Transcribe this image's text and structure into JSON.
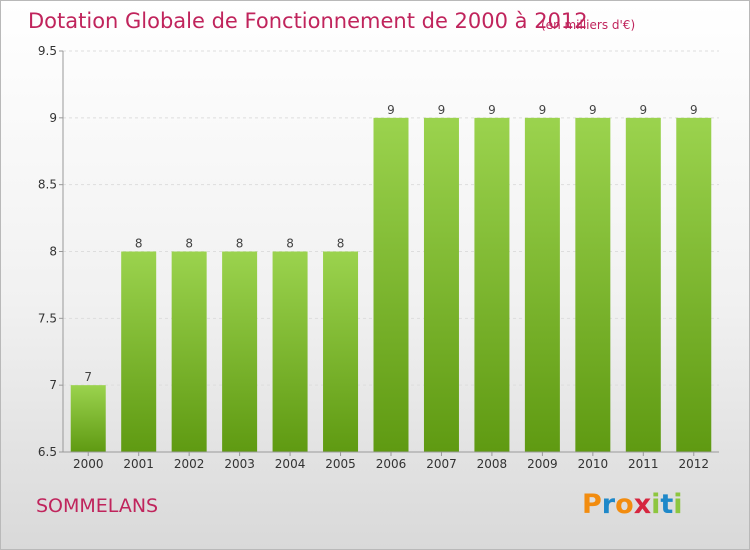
{
  "header": {
    "title": "Dotation Globale de Fonctionnement de 2000 à 2012",
    "unit": "(en milliers d'€)"
  },
  "footer": {
    "commune": "SOMMELANS",
    "logo": "Proxiti"
  },
  "colors": {
    "title": "#c0245c",
    "bar_light": "#9bd34e",
    "bar_dark": "#5f9a12",
    "axis": "#999999",
    "grid": "#dddddd"
  },
  "chart_data": {
    "type": "bar",
    "title": "Dotation Globale de Fonctionnement de 2000 à 2012",
    "subtitle": "(en milliers d'€)",
    "categories": [
      "2000",
      "2001",
      "2002",
      "2003",
      "2004",
      "2005",
      "2006",
      "2007",
      "2008",
      "2009",
      "2010",
      "2011",
      "2012"
    ],
    "values": [
      7,
      8,
      8,
      8,
      8,
      8,
      9,
      9,
      9,
      9,
      9,
      9,
      9
    ],
    "data_labels": [
      "7",
      "8",
      "8",
      "8",
      "8",
      "8",
      "9",
      "9",
      "9",
      "9",
      "9",
      "9",
      "9"
    ],
    "ylim": [
      6.5,
      9.5
    ],
    "yticks": [
      6.5,
      7,
      7.5,
      8,
      8.5,
      9,
      9.5
    ],
    "ytick_labels": [
      "6.5",
      "7",
      "7.5",
      "8",
      "8.5",
      "9",
      "9.5"
    ],
    "xlabel": "",
    "ylabel": "",
    "grid": true,
    "legend": "none"
  }
}
